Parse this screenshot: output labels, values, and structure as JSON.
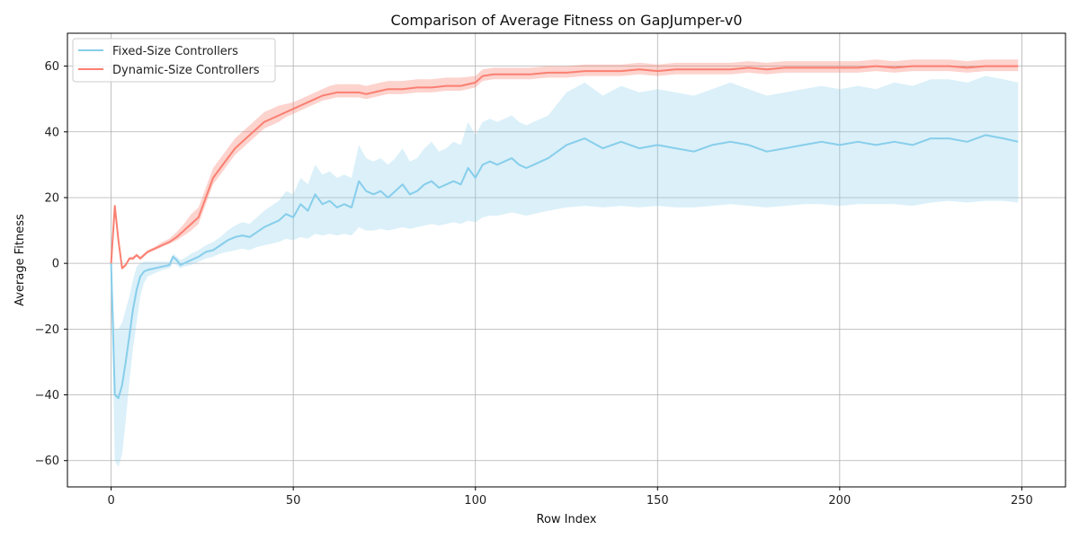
{
  "chart_data": {
    "type": "line",
    "title": "Comparison of Average Fitness on GapJumper-v0",
    "xlabel": "Row Index",
    "ylabel": "Average Fitness",
    "xlim": [
      -12,
      262
    ],
    "ylim": [
      -68,
      70
    ],
    "xticks": [
      0,
      50,
      100,
      150,
      200,
      250
    ],
    "yticks": [
      -60,
      -40,
      -20,
      0,
      20,
      40,
      60
    ],
    "xtick_labels": [
      "0",
      "50",
      "100",
      "150",
      "200",
      "250"
    ],
    "ytick_labels": [
      "−60",
      "−40",
      "−20",
      "0",
      "20",
      "40",
      "60"
    ],
    "grid": true,
    "legend_position": "top-left",
    "series": [
      {
        "name": "Fixed-Size Controllers",
        "color": "#87CEEB",
        "band_color": "#87CEEB",
        "x": [
          0,
          1,
          2,
          3,
          4,
          5,
          6,
          7,
          8,
          9,
          10,
          12,
          14,
          16,
          17,
          18,
          19,
          20,
          22,
          24,
          26,
          28,
          30,
          32,
          34,
          36,
          38,
          40,
          42,
          44,
          46,
          48,
          50,
          52,
          54,
          56,
          58,
          60,
          62,
          64,
          66,
          68,
          70,
          72,
          74,
          76,
          78,
          80,
          82,
          84,
          86,
          88,
          90,
          92,
          94,
          96,
          98,
          100,
          102,
          104,
          106,
          108,
          110,
          112,
          114,
          116,
          118,
          120,
          125,
          130,
          135,
          140,
          145,
          150,
          155,
          160,
          165,
          170,
          175,
          180,
          185,
          190,
          195,
          200,
          205,
          210,
          215,
          220,
          225,
          230,
          235,
          240,
          245,
          249
        ],
        "values": [
          0,
          -40,
          -41,
          -37,
          -30,
          -22,
          -14,
          -8,
          -4,
          -2.5,
          -2,
          -1.5,
          -1,
          -0.5,
          2,
          1,
          -0.5,
          0,
          1,
          2,
          3.5,
          4,
          5.5,
          7,
          8,
          8.5,
          8,
          9.5,
          11,
          12,
          13,
          15,
          14,
          18,
          16,
          21,
          18,
          19,
          17,
          18,
          17,
          25,
          22,
          21,
          22,
          20,
          22,
          24,
          21,
          22,
          24,
          25,
          23,
          24,
          25,
          24,
          29,
          26,
          30,
          31,
          30,
          31,
          32,
          30,
          29,
          30,
          31,
          32,
          36,
          38,
          35,
          37,
          35,
          36,
          35,
          34,
          36,
          37,
          36,
          34,
          35,
          36,
          37,
          36,
          37,
          36,
          37,
          36,
          38,
          38,
          37,
          39,
          38,
          37
        ],
        "lower": [
          0,
          -60,
          -62,
          -58,
          -48,
          -36,
          -26,
          -18,
          -10,
          -6,
          -4,
          -3,
          -2,
          -1.5,
          0,
          -0.5,
          -1.5,
          -1,
          -0.5,
          0.5,
          1.5,
          2,
          3,
          3.5,
          4,
          4.5,
          4,
          5,
          5.5,
          6,
          6.5,
          7.5,
          7,
          8,
          7.5,
          9,
          8.5,
          9,
          8.5,
          9,
          8.5,
          11,
          10,
          10,
          10.5,
          10,
          10.5,
          11,
          10.5,
          11,
          11.5,
          12,
          11.5,
          12,
          12.5,
          12,
          13,
          12.5,
          14,
          14.5,
          14.5,
          15,
          15.5,
          15,
          14.5,
          15,
          15.5,
          16,
          17,
          17.5,
          17,
          17.5,
          17,
          17.5,
          17,
          17,
          17.5,
          18,
          17.5,
          17,
          17.5,
          18,
          18,
          17.5,
          18,
          18,
          18,
          17.5,
          18.5,
          19,
          18.5,
          19,
          19,
          18.5
        ],
        "upper": [
          0,
          -20,
          -20,
          -18,
          -14,
          -10,
          -5,
          -1,
          0,
          0.5,
          0.5,
          0.5,
          0.5,
          0.5,
          3,
          2,
          1,
          1.5,
          3,
          4,
          5.5,
          6.5,
          8,
          10,
          11.5,
          12.5,
          12,
          14,
          16,
          17.5,
          19,
          22,
          21,
          26,
          24,
          30,
          27,
          28,
          26,
          27,
          26,
          36,
          32,
          31,
          32,
          30,
          32,
          35,
          31,
          32,
          35,
          37,
          34,
          35,
          37,
          36,
          43,
          39,
          43,
          44,
          43,
          44,
          45,
          43,
          42,
          43,
          44,
          45,
          52,
          55,
          51,
          54,
          52,
          53,
          52,
          51,
          53,
          55,
          53,
          51,
          52,
          53,
          54,
          53,
          54,
          53,
          55,
          54,
          56,
          56,
          55,
          57,
          56,
          55
        ]
      },
      {
        "name": "Dynamic-Size Controllers",
        "color": "#FA8072",
        "band_color": "#FA8072",
        "x": [
          0,
          1,
          2,
          3,
          4,
          5,
          6,
          7,
          8,
          10,
          12,
          14,
          16,
          18,
          20,
          22,
          24,
          26,
          28,
          30,
          32,
          34,
          36,
          38,
          40,
          42,
          44,
          46,
          48,
          50,
          52,
          54,
          56,
          58,
          60,
          62,
          64,
          66,
          68,
          70,
          72,
          74,
          76,
          78,
          80,
          84,
          88,
          92,
          96,
          100,
          102,
          105,
          110,
          115,
          120,
          125,
          130,
          135,
          140,
          145,
          150,
          155,
          160,
          165,
          170,
          175,
          180,
          185,
          190,
          195,
          200,
          205,
          210,
          215,
          220,
          225,
          230,
          235,
          240,
          245,
          249
        ],
        "values": [
          0,
          17.5,
          7,
          -1.5,
          -0.5,
          1.5,
          1.5,
          2.5,
          1.5,
          3.5,
          4.5,
          5.5,
          6.5,
          8,
          10,
          12,
          14,
          20,
          26,
          29,
          32,
          35,
          37,
          39,
          41,
          43,
          44,
          45,
          46,
          47,
          48,
          49,
          50,
          51,
          51.5,
          52,
          52,
          52,
          52,
          51.5,
          52,
          52.5,
          53,
          53,
          53,
          53.5,
          53.5,
          54,
          54,
          55,
          57,
          57.5,
          57.5,
          57.5,
          58,
          58,
          58.5,
          58.5,
          58.5,
          59,
          58.5,
          59,
          59,
          59,
          59,
          59.5,
          59,
          59.5,
          59.5,
          59.5,
          59.5,
          59.5,
          60,
          59.5,
          60,
          60,
          60,
          59.5,
          60,
          60,
          60
        ],
        "lower": [
          0,
          17,
          6.5,
          -2,
          -1,
          1,
          1,
          2,
          1,
          3,
          4,
          5,
          6,
          7,
          8.5,
          10,
          12,
          18,
          24,
          27,
          30,
          33,
          35,
          37,
          39,
          41,
          42,
          43,
          44.5,
          45.5,
          46.5,
          47.5,
          48.5,
          49.5,
          50,
          50.5,
          50.5,
          50.5,
          50.5,
          50,
          50.5,
          51,
          51.5,
          51.5,
          51.5,
          52,
          52,
          52.5,
          52.5,
          53.5,
          55.5,
          56,
          56,
          56,
          56.5,
          56.5,
          57,
          57,
          57,
          57.5,
          57,
          57.5,
          57.5,
          57.5,
          57.5,
          58,
          57.5,
          58,
          58,
          58,
          58,
          58,
          58.5,
          58,
          58.5,
          58.5,
          58.5,
          58,
          58.5,
          58.5,
          58.5
        ],
        "upper": [
          0,
          18,
          7.5,
          -1,
          0,
          2,
          2,
          3,
          2,
          4,
          5,
          6.5,
          7.5,
          9.5,
          12,
          15,
          17,
          23,
          29,
          32,
          35,
          38,
          40,
          42,
          44,
          46,
          47,
          48,
          48.5,
          49,
          50,
          51,
          52,
          53,
          54,
          54.5,
          54.5,
          54.5,
          54.5,
          54,
          54.5,
          55,
          55.5,
          55.5,
          55.5,
          56,
          56,
          56.5,
          56.5,
          57,
          59,
          59.5,
          59.5,
          59.5,
          60,
          60,
          60.5,
          60.5,
          60.5,
          61,
          60.5,
          61,
          61,
          61,
          61,
          61.5,
          61,
          61.5,
          61.5,
          61.5,
          61.5,
          61.5,
          62,
          61.5,
          62,
          62,
          62,
          61.5,
          62,
          62,
          62
        ]
      }
    ]
  }
}
